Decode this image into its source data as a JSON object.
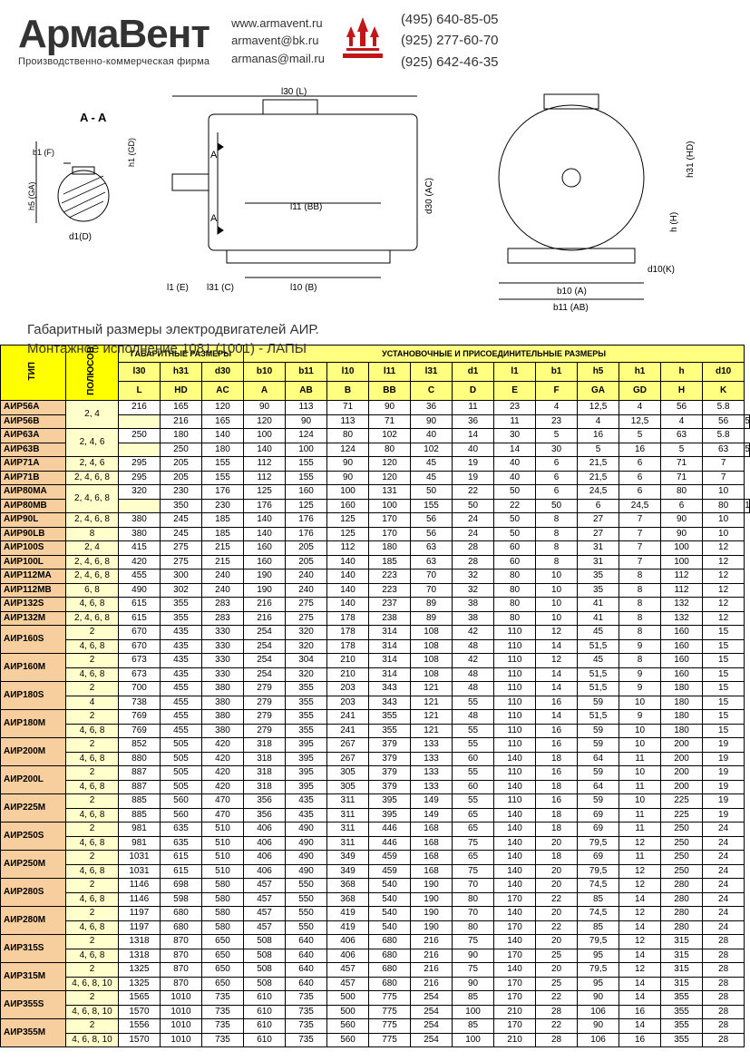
{
  "header": {
    "logo_text": "АрмаВент",
    "logo_sub": "Производственно-коммерческая фирма",
    "emails": [
      "www.armavent.ru",
      "armavent@bk.ru",
      "armanas@mail.ru"
    ],
    "phones": [
      "(495) 640-85-05",
      "(925) 277-60-70",
      "(925) 642-46-35"
    ],
    "logo_color": "#c01818"
  },
  "diagram": {
    "caption_line1": "Габаритный размеры электродвигателей АИР.",
    "caption_line2": "Монтажное исполнение 1081 (1001) - ЛАПЫ",
    "labels": [
      "A - A",
      "b1 (F)",
      "h1 (GD)",
      "h5 (GA)",
      "d1(D)",
      "l30 (L)",
      "l11 (BB)",
      "d30 (AC)",
      "l1 (E)",
      "l31 (C)",
      "l10 (B)",
      "h31 (HD)",
      "h (H)",
      "d10(K)",
      "b10 (A)",
      "b11 (AB)",
      "A",
      "A"
    ]
  },
  "table": {
    "headers": {
      "type": "ТИП",
      "poles": "ПОЛЮСОВ",
      "group_gab": "ГАБАРИТНЫЕ РАЗМЕРЫ",
      "group_ust": "УСТАНОВОЧНЫЕ И ПРИСОЕДИНИТЕЛЬНЫЕ РАЗМЕРЫ",
      "row2": [
        "l30",
        "h31",
        "d30",
        "b10",
        "b11",
        "l10",
        "l11",
        "l31",
        "d1",
        "l1",
        "b1",
        "h5",
        "h1",
        "h",
        "d10"
      ],
      "row3": [
        "L",
        "HD",
        "AC",
        "A",
        "AB",
        "B",
        "BB",
        "C",
        "D",
        "E",
        "F",
        "GA",
        "GD",
        "H",
        "K"
      ]
    },
    "colors": {
      "hdr_type_bg": "#ffff00",
      "hdr_dim_bg": "#ffff80",
      "row_type_bg": "#f7cf9e",
      "row_poles_bg": "#ffffcc",
      "border": "#000000"
    },
    "rows": [
      {
        "type": "АИР56А",
        "poles": "2, 4",
        "span": 2,
        "vals": [
          "216",
          "165",
          "120",
          "90",
          "113",
          "71",
          "90",
          "36",
          "11",
          "23",
          "4",
          "12,5",
          "4",
          "56",
          "5.8"
        ]
      },
      {
        "type": "АИР56В",
        "vals": [
          "216",
          "165",
          "120",
          "90",
          "113",
          "71",
          "90",
          "36",
          "11",
          "23",
          "4",
          "12,5",
          "4",
          "56",
          "5.8"
        ]
      },
      {
        "type": "АИР63А",
        "poles": "2, 4, 6",
        "span": 2,
        "vals": [
          "250",
          "180",
          "140",
          "100",
          "124",
          "80",
          "102",
          "40",
          "14",
          "30",
          "5",
          "16",
          "5",
          "63",
          "5.8"
        ]
      },
      {
        "type": "АИР63В",
        "vals": [
          "250",
          "180",
          "140",
          "100",
          "124",
          "80",
          "102",
          "40",
          "14",
          "30",
          "5",
          "16",
          "5",
          "63",
          "5.8"
        ]
      },
      {
        "type": "АИР71А",
        "poles": "2, 4, 6",
        "span": 1,
        "vals": [
          "295",
          "205",
          "155",
          "112",
          "155",
          "90",
          "120",
          "45",
          "19",
          "40",
          "6",
          "21,5",
          "6",
          "71",
          "7"
        ]
      },
      {
        "type": "АИР71В",
        "poles": "2, 4, 6, 8",
        "span": 1,
        "vals": [
          "295",
          "205",
          "155",
          "112",
          "155",
          "90",
          "120",
          "45",
          "19",
          "40",
          "6",
          "21,5",
          "6",
          "71",
          "7"
        ]
      },
      {
        "type": "АИР80МА",
        "poles": "2, 4, 6, 8",
        "span": 2,
        "vals": [
          "320",
          "230",
          "176",
          "125",
          "160",
          "100",
          "131",
          "50",
          "22",
          "50",
          "6",
          "24,5",
          "6",
          "80",
          "10"
        ]
      },
      {
        "type": "АИР80МВ",
        "vals": [
          "350",
          "230",
          "176",
          "125",
          "160",
          "100",
          "155",
          "50",
          "22",
          "50",
          "6",
          "24,5",
          "6",
          "80",
          "10"
        ]
      },
      {
        "type": "АИР90L",
        "poles": "2, 4, 6, 8",
        "span": 1,
        "vals": [
          "380",
          "245",
          "185",
          "140",
          "176",
          "125",
          "170",
          "56",
          "24",
          "50",
          "8",
          "27",
          "7",
          "90",
          "10"
        ]
      },
      {
        "type": "АИР90LB",
        "poles": "8",
        "span": 1,
        "vals": [
          "380",
          "245",
          "185",
          "140",
          "176",
          "125",
          "170",
          "56",
          "24",
          "50",
          "8",
          "27",
          "7",
          "90",
          "10"
        ]
      },
      {
        "type": "АИР100S",
        "poles": "2, 4",
        "span": 1,
        "vals": [
          "415",
          "275",
          "215",
          "160",
          "205",
          "112",
          "180",
          "63",
          "28",
          "60",
          "8",
          "31",
          "7",
          "100",
          "12"
        ]
      },
      {
        "type": "АИР100L",
        "poles": "2, 4, 6, 8",
        "span": 1,
        "vals": [
          "420",
          "275",
          "215",
          "160",
          "205",
          "140",
          "185",
          "63",
          "28",
          "60",
          "8",
          "31",
          "7",
          "100",
          "12"
        ]
      },
      {
        "type": "АИР112МА",
        "poles": "2, 4, 6, 8",
        "span": 1,
        "vals": [
          "455",
          "300",
          "240",
          "190",
          "240",
          "140",
          "223",
          "70",
          "32",
          "80",
          "10",
          "35",
          "8",
          "112",
          "12"
        ]
      },
      {
        "type": "АИР112МВ",
        "poles": "6, 8",
        "span": 1,
        "vals": [
          "490",
          "302",
          "240",
          "190",
          "240",
          "140",
          "223",
          "70",
          "32",
          "80",
          "10",
          "35",
          "8",
          "112",
          "12"
        ]
      },
      {
        "type": "АИР132S",
        "poles": "4, 6, 8",
        "span": 1,
        "vals": [
          "615",
          "355",
          "283",
          "216",
          "275",
          "140",
          "237",
          "89",
          "38",
          "80",
          "10",
          "41",
          "8",
          "132",
          "12"
        ]
      },
      {
        "type": "АИР132М",
        "poles": "2, 4, 6, 8",
        "span": 1,
        "vals": [
          "615",
          "355",
          "283",
          "216",
          "275",
          "178",
          "238",
          "89",
          "38",
          "80",
          "10",
          "41",
          "8",
          "132",
          "12"
        ]
      },
      {
        "type": "АИР160S",
        "poles": "2",
        "span": 1,
        "vals": [
          "670",
          "435",
          "330",
          "254",
          "320",
          "178",
          "314",
          "108",
          "42",
          "110",
          "12",
          "45",
          "8",
          "160",
          "15"
        ]
      },
      {
        "type": "",
        "poles": "4, 6, 8",
        "span": 1,
        "vals": [
          "670",
          "435",
          "330",
          "254",
          "320",
          "178",
          "314",
          "108",
          "48",
          "110",
          "14",
          "51,5",
          "9",
          "160",
          "15"
        ],
        "merge_type": "АИР160S"
      },
      {
        "type": "АИР160М",
        "poles": "2",
        "span": 1,
        "vals": [
          "673",
          "435",
          "330",
          "254",
          "304",
          "210",
          "314",
          "108",
          "42",
          "110",
          "12",
          "45",
          "8",
          "160",
          "15"
        ]
      },
      {
        "type": "",
        "poles": "4, 6, 8",
        "span": 1,
        "vals": [
          "673",
          "435",
          "330",
          "254",
          "320",
          "210",
          "314",
          "108",
          "48",
          "110",
          "14",
          "51,5",
          "9",
          "160",
          "15"
        ],
        "merge_type": "АИР160М"
      },
      {
        "type": "АИР180S",
        "poles": "2",
        "span": 1,
        "vals": [
          "700",
          "455",
          "380",
          "279",
          "355",
          "203",
          "343",
          "121",
          "48",
          "110",
          "14",
          "51,5",
          "9",
          "180",
          "15"
        ]
      },
      {
        "type": "",
        "poles": "4",
        "span": 1,
        "vals": [
          "738",
          "455",
          "380",
          "279",
          "355",
          "203",
          "343",
          "121",
          "55",
          "110",
          "16",
          "59",
          "10",
          "180",
          "15"
        ],
        "merge_type": "АИР180S"
      },
      {
        "type": "АИР180М",
        "poles": "2",
        "span": 1,
        "vals": [
          "769",
          "455",
          "380",
          "279",
          "355",
          "241",
          "355",
          "121",
          "48",
          "110",
          "14",
          "51,5",
          "9",
          "180",
          "15"
        ]
      },
      {
        "type": "",
        "poles": "4, 6, 8",
        "span": 1,
        "vals": [
          "769",
          "455",
          "380",
          "279",
          "355",
          "241",
          "355",
          "121",
          "55",
          "110",
          "16",
          "59",
          "10",
          "180",
          "15"
        ],
        "merge_type": "АИР180М"
      },
      {
        "type": "АИР200М",
        "poles": "2",
        "span": 1,
        "vals": [
          "852",
          "505",
          "420",
          "318",
          "395",
          "267",
          "379",
          "133",
          "55",
          "110",
          "16",
          "59",
          "10",
          "200",
          "19"
        ]
      },
      {
        "type": "",
        "poles": "4, 6, 8",
        "span": 1,
        "vals": [
          "880",
          "505",
          "420",
          "318",
          "395",
          "267",
          "379",
          "133",
          "60",
          "140",
          "18",
          "64",
          "11",
          "200",
          "19"
        ],
        "merge_type": "АИР200М"
      },
      {
        "type": "АИР200L",
        "poles": "2",
        "span": 1,
        "vals": [
          "887",
          "505",
          "420",
          "318",
          "395",
          "305",
          "379",
          "133",
          "55",
          "110",
          "16",
          "59",
          "10",
          "200",
          "19"
        ]
      },
      {
        "type": "",
        "poles": "4, 6, 8",
        "span": 1,
        "vals": [
          "887",
          "505",
          "420",
          "318",
          "395",
          "305",
          "379",
          "133",
          "60",
          "140",
          "18",
          "64",
          "11",
          "200",
          "19"
        ],
        "merge_type": "АИР200L"
      },
      {
        "type": "АИР225М",
        "poles": "2",
        "span": 1,
        "vals": [
          "885",
          "560",
          "470",
          "356",
          "435",
          "311",
          "395",
          "149",
          "55",
          "110",
          "16",
          "59",
          "10",
          "225",
          "19"
        ]
      },
      {
        "type": "",
        "poles": "4, 6, 8",
        "span": 1,
        "vals": [
          "885",
          "560",
          "470",
          "356",
          "435",
          "311",
          "395",
          "149",
          "65",
          "140",
          "18",
          "69",
          "11",
          "225",
          "19"
        ],
        "merge_type": "АИР225М"
      },
      {
        "type": "АИР250S",
        "poles": "2",
        "span": 1,
        "vals": [
          "981",
          "635",
          "510",
          "406",
          "490",
          "311",
          "446",
          "168",
          "65",
          "140",
          "18",
          "69",
          "11",
          "250",
          "24"
        ]
      },
      {
        "type": "",
        "poles": "4, 6, 8",
        "span": 1,
        "vals": [
          "981",
          "635",
          "510",
          "406",
          "490",
          "311",
          "446",
          "168",
          "75",
          "140",
          "20",
          "79,5",
          "12",
          "250",
          "24"
        ],
        "merge_type": "АИР250S"
      },
      {
        "type": "АИР250М",
        "poles": "2",
        "span": 1,
        "vals": [
          "1031",
          "615",
          "510",
          "406",
          "490",
          "349",
          "459",
          "168",
          "65",
          "140",
          "18",
          "69",
          "11",
          "250",
          "24"
        ]
      },
      {
        "type": "",
        "poles": "4, 6, 8",
        "span": 1,
        "vals": [
          "1031",
          "615",
          "510",
          "406",
          "490",
          "349",
          "459",
          "168",
          "75",
          "140",
          "20",
          "79,5",
          "12",
          "250",
          "24"
        ],
        "merge_type": "АИР250М"
      },
      {
        "type": "АИР280S",
        "poles": "2",
        "span": 1,
        "vals": [
          "1146",
          "698",
          "580",
          "457",
          "550",
          "368",
          "540",
          "190",
          "70",
          "140",
          "20",
          "74,5",
          "12",
          "280",
          "24"
        ]
      },
      {
        "type": "",
        "poles": "4, 6, 8",
        "span": 1,
        "vals": [
          "1146",
          "598",
          "580",
          "457",
          "550",
          "368",
          "540",
          "190",
          "80",
          "170",
          "22",
          "85",
          "14",
          "280",
          "24"
        ],
        "merge_type": "АИР280S"
      },
      {
        "type": "АИР280М",
        "poles": "2",
        "span": 1,
        "vals": [
          "1197",
          "680",
          "580",
          "457",
          "550",
          "419",
          "540",
          "190",
          "70",
          "140",
          "20",
          "74,5",
          "12",
          "280",
          "24"
        ]
      },
      {
        "type": "",
        "poles": "4, 6, 8",
        "span": 1,
        "vals": [
          "1197",
          "680",
          "580",
          "457",
          "550",
          "419",
          "540",
          "190",
          "80",
          "170",
          "22",
          "85",
          "14",
          "280",
          "24"
        ],
        "merge_type": "АИР280М"
      },
      {
        "type": "АИР315S",
        "poles": "2",
        "span": 1,
        "vals": [
          "1318",
          "870",
          "650",
          "508",
          "640",
          "406",
          "680",
          "216",
          "75",
          "140",
          "20",
          "79,5",
          "12",
          "315",
          "28"
        ]
      },
      {
        "type": "",
        "poles": "4, 6, 8",
        "span": 1,
        "vals": [
          "1318",
          "870",
          "650",
          "508",
          "640",
          "406",
          "680",
          "216",
          "90",
          "170",
          "25",
          "95",
          "14",
          "315",
          "28"
        ],
        "merge_type": "АИР315S"
      },
      {
        "type": "АИР315М",
        "poles": "2",
        "span": 1,
        "vals": [
          "1325",
          "870",
          "650",
          "508",
          "640",
          "457",
          "680",
          "216",
          "75",
          "140",
          "20",
          "79,5",
          "12",
          "315",
          "28"
        ]
      },
      {
        "type": "",
        "poles": "4, 6, 8, 10",
        "span": 1,
        "vals": [
          "1325",
          "870",
          "650",
          "508",
          "640",
          "457",
          "680",
          "216",
          "90",
          "170",
          "25",
          "95",
          "14",
          "315",
          "28"
        ],
        "merge_type": "АИР315М"
      },
      {
        "type": "АИР355S",
        "poles": "2",
        "span": 1,
        "vals": [
          "1565",
          "1010",
          "735",
          "610",
          "735",
          "500",
          "775",
          "254",
          "85",
          "170",
          "22",
          "90",
          "14",
          "355",
          "28"
        ]
      },
      {
        "type": "",
        "poles": "4, 6, 8, 10",
        "span": 1,
        "vals": [
          "1570",
          "1010",
          "735",
          "610",
          "735",
          "500",
          "775",
          "254",
          "100",
          "210",
          "28",
          "106",
          "16",
          "355",
          "28"
        ],
        "merge_type": "АИР355S"
      },
      {
        "type": "АИР355М",
        "poles": "2",
        "span": 1,
        "vals": [
          "1556",
          "1010",
          "735",
          "610",
          "735",
          "560",
          "775",
          "254",
          "85",
          "170",
          "22",
          "90",
          "14",
          "355",
          "28"
        ]
      },
      {
        "type": "",
        "poles": "4, 6, 8, 10",
        "span": 1,
        "vals": [
          "1570",
          "1010",
          "735",
          "610",
          "735",
          "560",
          "775",
          "254",
          "100",
          "210",
          "28",
          "106",
          "16",
          "355",
          "28"
        ],
        "merge_type": "АИР355М"
      }
    ]
  }
}
